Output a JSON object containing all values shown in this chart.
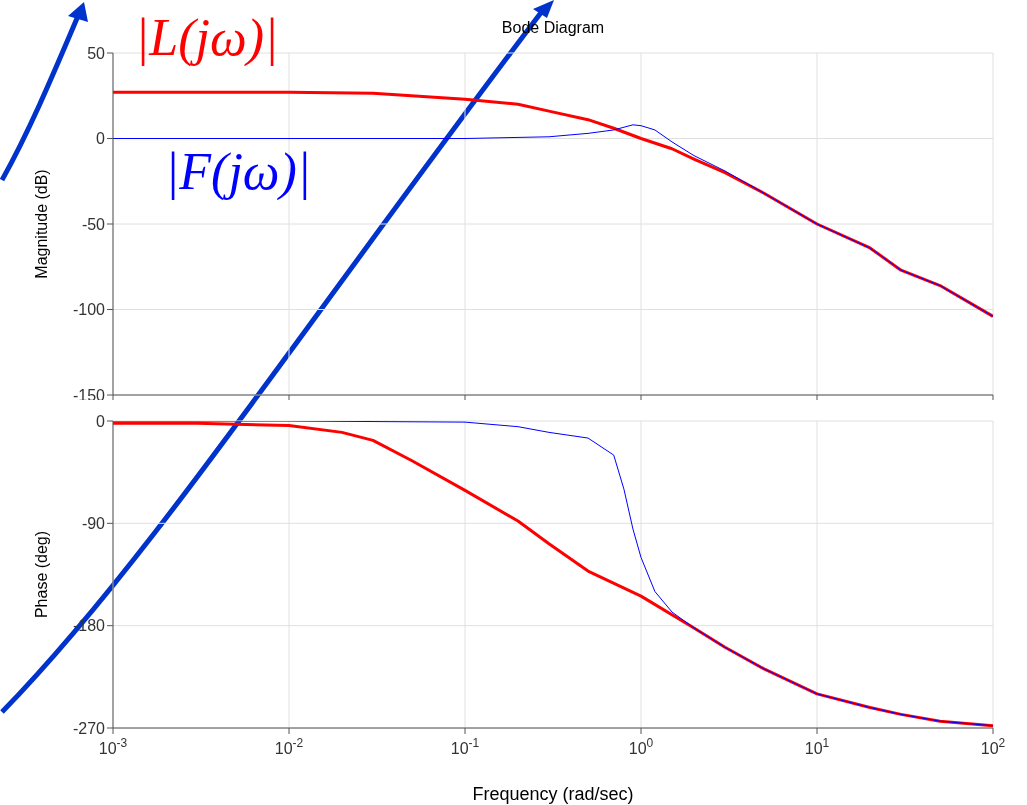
{
  "chart_data": [
    {
      "type": "line",
      "title": "Bode Diagram",
      "ylabel": "Magnitude (dB)",
      "annotations": [
        "|L(jω)|",
        "|F(jω)|"
      ],
      "xlim": [
        0.001,
        100
      ],
      "xticks": [
        0.001,
        0.01,
        0.1,
        1,
        10,
        100
      ],
      "ylim": [
        -150,
        50
      ],
      "yticks": [
        -150,
        -100,
        -50,
        0,
        50
      ],
      "log": "x",
      "grid": true,
      "legend": false,
      "marker": "none",
      "line_style": "solid",
      "tick_labels": "y",
      "series": [
        {
          "color": "#ff0000",
          "x": [
            0.001,
            0.003,
            0.01,
            0.03,
            0.1,
            0.2,
            0.3,
            0.5,
            0.7,
            1,
            1.5,
            2,
            3,
            5,
            10,
            20,
            30,
            50,
            100
          ],
          "values": [
            27,
            27,
            27,
            26.5,
            23,
            20,
            16,
            11,
            6,
            0,
            -6,
            -12,
            -20,
            -32,
            -50,
            -64,
            -77,
            -86,
            -104
          ]
        },
        {
          "color": "#0000ff",
          "x": [
            0.001,
            0.01,
            0.1,
            0.3,
            0.5,
            0.7,
            0.9,
            1,
            1.2,
            1.5,
            2,
            3,
            5,
            10,
            20,
            30,
            50,
            100
          ],
          "values": [
            0,
            0,
            0,
            1,
            3,
            5,
            8,
            7.5,
            5,
            -2,
            -10,
            -19,
            -32,
            -50,
            -64,
            -77,
            -86,
            -104
          ]
        }
      ]
    },
    {
      "type": "line",
      "xlabel": "Frequency  (rad/sec)",
      "ylabel": "Phase (deg)",
      "xlim": [
        0.001,
        100
      ],
      "xticks": [
        {
          "value": 0.001,
          "label": "10$^{-3}$"
        },
        {
          "value": 0.01,
          "label": "10$^{-2}$"
        },
        {
          "value": 0.1,
          "label": "10$^{-1}$"
        },
        {
          "value": 1,
          "label": "10$^{0}$"
        },
        {
          "value": 10,
          "label": "10$^{1}$"
        },
        {
          "value": 100,
          "label": "10$^{2}$"
        }
      ],
      "ylim": [
        -270,
        0
      ],
      "yticks": [
        -270,
        -180,
        -90,
        0
      ],
      "log": "x",
      "grid": true,
      "legend": false,
      "marker": "none",
      "line_style": "solid",
      "series": [
        {
          "color": "#ff0000",
          "x": [
            0.001,
            0.003,
            0.01,
            0.02,
            0.03,
            0.05,
            0.1,
            0.2,
            0.3,
            0.5,
            1,
            2,
            3,
            5,
            10,
            20,
            30,
            50,
            100
          ],
          "values": [
            -2,
            -2,
            -4,
            -10,
            -17,
            -35,
            -61,
            -88,
            -108,
            -132,
            -154,
            -182,
            -199,
            -218,
            -240,
            -252,
            -258,
            -264,
            -268
          ]
        },
        {
          "color": "#0000ff",
          "x": [
            0.001,
            0.01,
            0.1,
            0.2,
            0.3,
            0.5,
            0.7,
            0.8,
            0.9,
            1,
            1.2,
            1.5,
            2,
            3,
            5,
            10,
            20,
            30,
            50,
            100
          ],
          "values": [
            0,
            0,
            -1,
            -5,
            -10,
            -15,
            -30,
            -60,
            -95,
            -120,
            -150,
            -168,
            -182,
            -199,
            -218,
            -240,
            -252,
            -258,
            -264,
            -268
          ]
        }
      ]
    }
  ]
}
